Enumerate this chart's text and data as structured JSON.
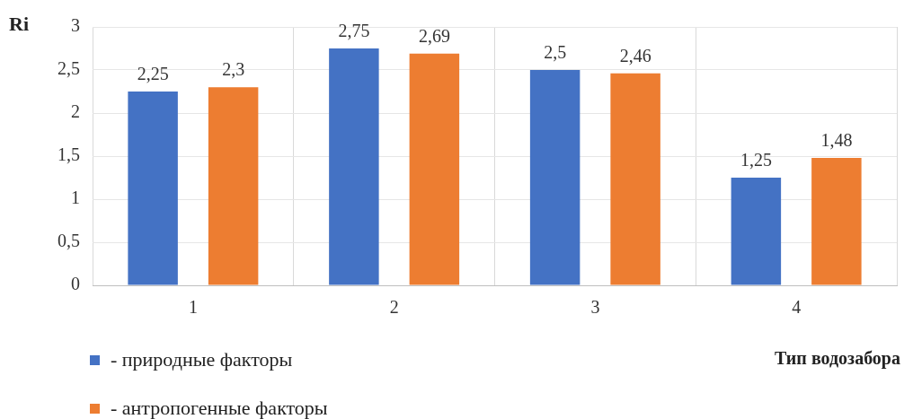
{
  "chart_data": {
    "type": "bar",
    "ylabel": "Ri",
    "xlabel": "Тип водозабора",
    "categories": [
      "1",
      "2",
      "3",
      "4"
    ],
    "series": [
      {
        "name": "- природные факторы",
        "color": "#4472c4",
        "values": [
          2.25,
          2.75,
          2.5,
          1.25
        ],
        "value_labels": [
          "2,25",
          "2,75",
          "2,5",
          "1,25"
        ]
      },
      {
        "name": "- антропогенные факторы",
        "color": "#ed7d31",
        "values": [
          2.3,
          2.69,
          2.46,
          1.48
        ],
        "value_labels": [
          "2,3",
          "2,69",
          "2,46",
          "1,48"
        ]
      }
    ],
    "ylim": [
      0,
      3
    ],
    "yticks": [
      0,
      {
        "value": 0.5,
        "label": "0,5"
      },
      1,
      {
        "value": 1.5,
        "label": "1,5"
      },
      2,
      {
        "value": 2.5,
        "label": "2,5"
      },
      3
    ],
    "grid": true,
    "legend": "bottom left"
  }
}
